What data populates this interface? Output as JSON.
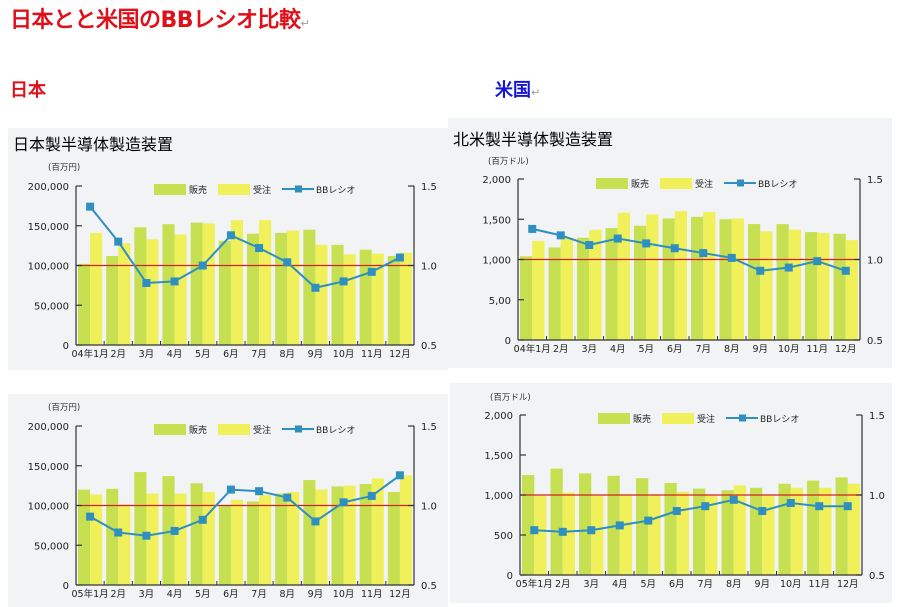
{
  "page": {
    "title": "日本とと米国のBBレシオ比較",
    "section_japan": "日本",
    "section_us": "米国",
    "return_mark": "↵"
  },
  "panels": {
    "jp_title": "日本製半導体製造装置",
    "us_title": "北米製半導体製造装置"
  },
  "colors": {
    "sales": "#c6e052",
    "orders": "#f0f05a",
    "bb_line": "#2f8fc0",
    "reference_line": "#d82020",
    "panel_bg": "#f1f3f5",
    "title_red": "#e0101a",
    "title_blue": "#1414d8"
  },
  "legend": {
    "sales": "販売",
    "orders": "受注",
    "bb": "BBレシオ"
  },
  "chart_data": [
    {
      "id": "jp2004",
      "type": "bar",
      "unit_label": "(百万円)",
      "categories": [
        "04年1月",
        "2月",
        "3月",
        "4月",
        "5月",
        "6月",
        "7月",
        "8月",
        "9月",
        "10月",
        "11月",
        "12月"
      ],
      "y_ticks": [
        "0",
        "50,000",
        "100,000",
        "150,000",
        "200,000"
      ],
      "ylim": [
        0,
        200000
      ],
      "y2_ticks": [
        "0.5",
        "1.0",
        "1.5"
      ],
      "y2lim": [
        0.5,
        1.5
      ],
      "reference_value": 1.0,
      "legend_position": "top",
      "series": [
        {
          "name": "販売",
          "type": "bar",
          "values": [
            102000,
            112000,
            148000,
            152000,
            154000,
            131000,
            140000,
            141000,
            145000,
            126000,
            120000,
            112000
          ]
        },
        {
          "name": "受注",
          "type": "bar",
          "values": [
            141000,
            128000,
            133000,
            139000,
            153000,
            157000,
            157000,
            144000,
            126000,
            114000,
            115000,
            116000
          ]
        },
        {
          "name": "BBレシオ",
          "type": "line",
          "axis": "right",
          "values": [
            1.37,
            1.15,
            0.89,
            0.9,
            1.0,
            1.19,
            1.11,
            1.02,
            0.86,
            0.9,
            0.96,
            1.05
          ]
        }
      ]
    },
    {
      "id": "jp2005",
      "type": "bar",
      "unit_label": "(百万円)",
      "categories": [
        "05年1月",
        "2月",
        "3月",
        "4月",
        "5月",
        "6月",
        "7月",
        "8月",
        "9月",
        "10月",
        "11月",
        "12月"
      ],
      "y_ticks": [
        "0",
        "50,000",
        "100,000",
        "150,000",
        "200,000"
      ],
      "ylim": [
        0,
        200000
      ],
      "y2_ticks": [
        "0.5",
        "1.0",
        "1.5"
      ],
      "y2lim": [
        0.5,
        1.5
      ],
      "reference_value": 1.0,
      "legend_position": "top",
      "series": [
        {
          "name": "販売",
          "type": "bar",
          "values": [
            120000,
            121000,
            142000,
            137000,
            128000,
            100000,
            105000,
            115000,
            132000,
            124000,
            127000,
            117000
          ]
        },
        {
          "name": "受注",
          "type": "bar",
          "values": [
            114000,
            101000,
            115000,
            115000,
            117000,
            107000,
            113000,
            117000,
            120000,
            125000,
            134000,
            138000
          ]
        },
        {
          "name": "BBレシオ",
          "type": "line",
          "axis": "right",
          "values": [
            0.93,
            0.83,
            0.81,
            0.84,
            0.91,
            1.1,
            1.09,
            1.05,
            0.9,
            1.02,
            1.06,
            1.19
          ]
        }
      ]
    },
    {
      "id": "us2004",
      "type": "bar",
      "unit_label": "(百万ドル)",
      "categories": [
        "04年1月",
        "2月",
        "3月",
        "4月",
        "5月",
        "6月",
        "7月",
        "8月",
        "9月",
        "10月",
        "11月",
        "12月"
      ],
      "y_ticks": [
        "0",
        "5,00",
        "1,000",
        "1,500",
        "2,000"
      ],
      "ylim": [
        0,
        2000
      ],
      "y2_ticks": [
        "0.5",
        "1.0",
        "1.5"
      ],
      "y2lim": [
        0.5,
        1.5
      ],
      "reference_value": 1.0,
      "legend_position": "top",
      "series": [
        {
          "name": "販売",
          "type": "bar",
          "values": [
            1040,
            1150,
            1270,
            1390,
            1420,
            1510,
            1530,
            1500,
            1440,
            1440,
            1340,
            1320
          ]
        },
        {
          "name": "受注",
          "type": "bar",
          "values": [
            1230,
            1270,
            1370,
            1580,
            1560,
            1600,
            1590,
            1510,
            1350,
            1370,
            1330,
            1240
          ]
        },
        {
          "name": "BBレシオ",
          "type": "line",
          "axis": "right",
          "values": [
            1.19,
            1.15,
            1.09,
            1.13,
            1.1,
            1.07,
            1.04,
            1.01,
            0.93,
            0.95,
            0.99,
            0.93
          ]
        }
      ]
    },
    {
      "id": "us2005",
      "type": "bar",
      "unit_label": "(百万ドル)",
      "categories": [
        "05年1月",
        "2月",
        "3月",
        "4月",
        "5月",
        "6月",
        "7月",
        "8月",
        "9月",
        "10月",
        "11月",
        "12月"
      ],
      "y_ticks": [
        "0",
        "500",
        "1,000",
        "1,500",
        "2,000"
      ],
      "ylim": [
        0,
        2000
      ],
      "y2_ticks": [
        "0.5",
        "1.0",
        "1.5"
      ],
      "y2lim": [
        0.5,
        1.5
      ],
      "reference_value": 1.0,
      "legend_position": "top",
      "series": [
        {
          "name": "販売",
          "type": "bar",
          "values": [
            1250,
            1330,
            1270,
            1240,
            1210,
            1150,
            1080,
            1060,
            1090,
            1140,
            1180,
            1220
          ]
        },
        {
          "name": "受注",
          "type": "bar",
          "values": [
            990,
            1030,
            990,
            1000,
            1000,
            1040,
            1000,
            1120,
            990,
            1090,
            1090,
            1140
          ]
        },
        {
          "name": "BBレシオ",
          "type": "line",
          "axis": "right",
          "values": [
            0.78,
            0.77,
            0.78,
            0.81,
            0.84,
            0.9,
            0.93,
            0.97,
            0.9,
            0.95,
            0.93,
            0.93
          ]
        }
      ]
    }
  ]
}
